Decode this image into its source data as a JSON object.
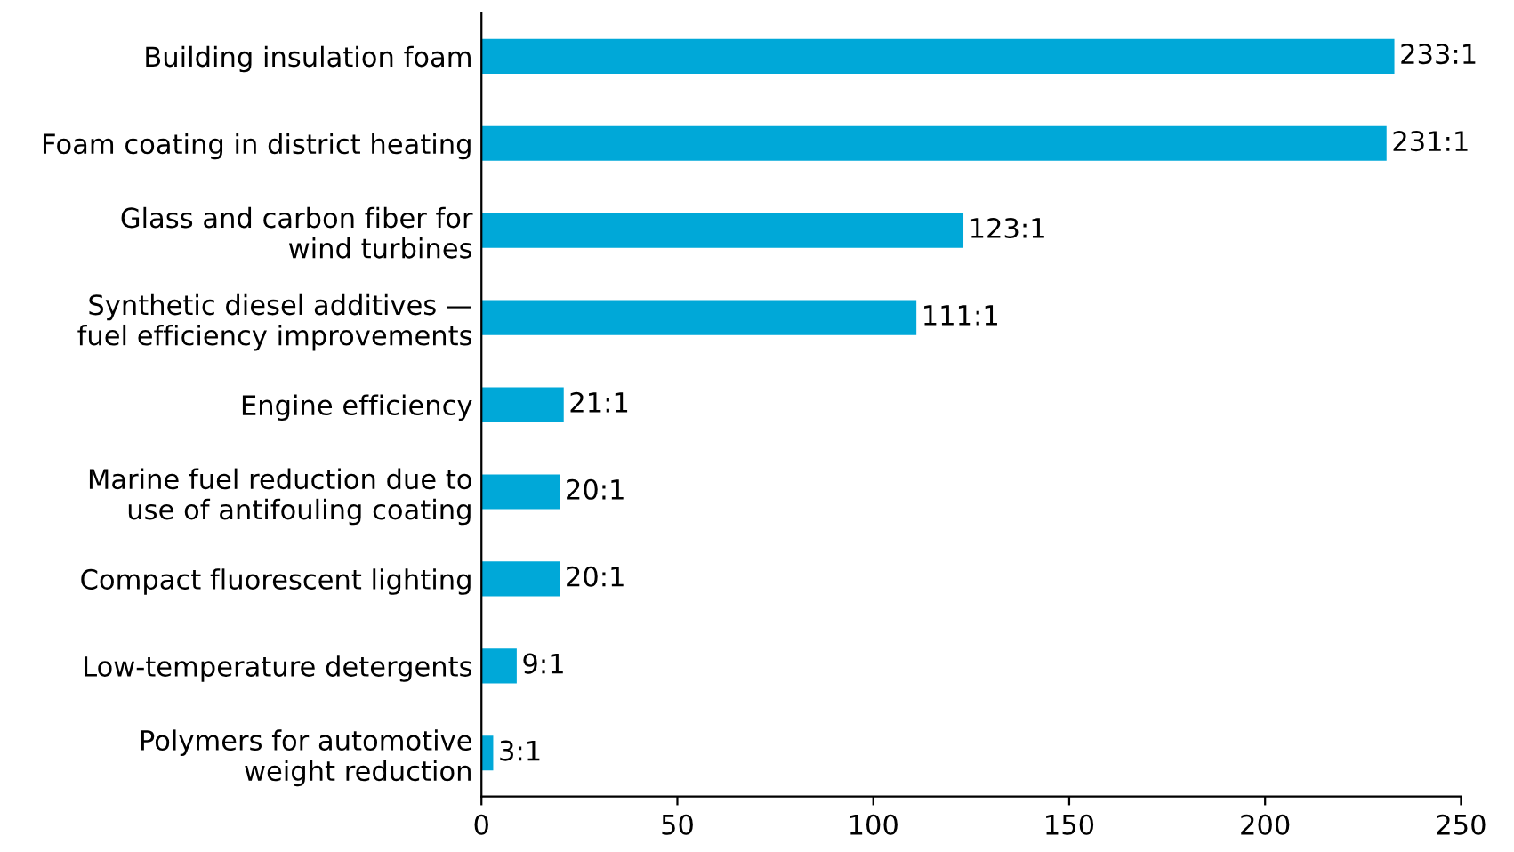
{
  "chart_data": {
    "type": "bar",
    "orientation": "horizontal",
    "categories": [
      "Building insulation foam",
      "Foam coating in district heating",
      "Glass and carbon fiber for\nwind turbines",
      "Synthetic diesel additives —\nfuel efficiency improvements",
      "Engine efficiency",
      "Marine fuel reduction due to\nuse of antifouling coating",
      "Compact fluorescent lighting",
      "Low-temperature detergents",
      "Polymers for automotive\nweight reduction"
    ],
    "values": [
      233,
      231,
      123,
      111,
      21,
      20,
      20,
      9,
      3
    ],
    "value_labels": [
      "233:1",
      "231:1",
      "123:1",
      "111:1",
      "21:1",
      "20:1",
      "20:1",
      "9:1",
      "3:1"
    ],
    "color": "#00a8d8",
    "xlim": [
      0,
      250
    ],
    "xticks": [
      0,
      50,
      100,
      150,
      200,
      250
    ],
    "grid": false,
    "legend": false
  }
}
